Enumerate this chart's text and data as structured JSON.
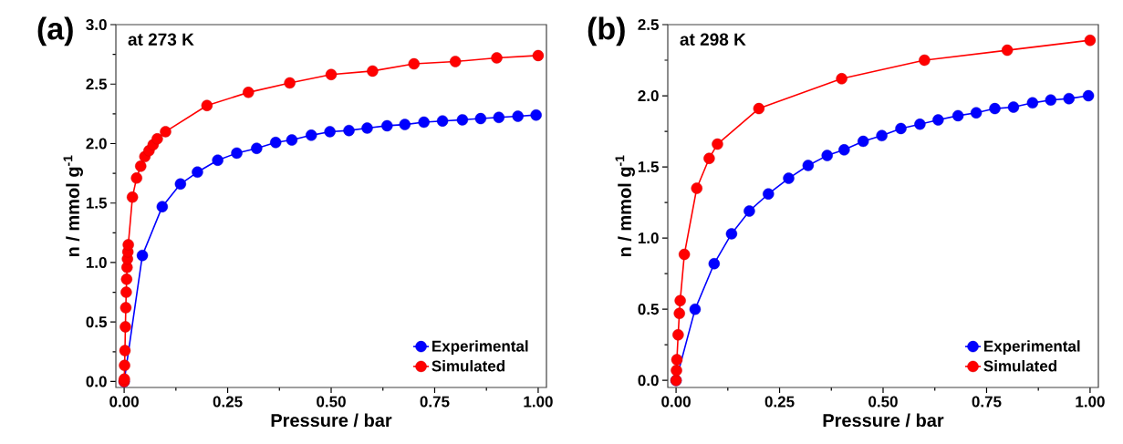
{
  "chart_data": [
    {
      "type": "line",
      "annotations": [
        "(a)",
        "at 273 K"
      ],
      "xlabel": "Pressure / bar",
      "ylabel": "n / mmol g$^{-1}$",
      "xlim": [
        -0.02,
        1.02
      ],
      "ylim": [
        -0.05,
        3.0
      ],
      "xticks": [
        {
          "value": 0,
          "label": "0.00"
        },
        {
          "value": 0.25,
          "label": "0.25"
        },
        {
          "value": 0.5,
          "label": "0.50"
        },
        {
          "value": 0.75,
          "label": "0.75"
        },
        {
          "value": 1,
          "label": "1.00"
        }
      ],
      "yticks": [
        {
          "value": 0,
          "label": "0.0"
        },
        {
          "value": 0.5,
          "label": "0.5"
        },
        {
          "value": 1,
          "label": "1.0"
        },
        {
          "value": 1.5,
          "label": "1.5"
        },
        {
          "value": 2,
          "label": "2.0"
        },
        {
          "value": 2.5,
          "label": "2.5"
        },
        {
          "value": 3,
          "label": "3.0"
        }
      ],
      "marker": "circle",
      "line_style": "solid",
      "grid": false,
      "legend": "bottom right",
      "series": [
        {
          "name": "Experimental",
          "color": "#0000ff",
          "x": [
            0.0,
            0.005,
            0.044,
            0.092,
            0.136,
            0.177,
            0.226,
            0.272,
            0.32,
            0.366,
            0.405,
            0.452,
            0.497,
            0.543,
            0.587,
            0.635,
            0.678,
            0.724,
            0.769,
            0.817,
            0.861,
            0.905,
            0.951,
            0.995
          ],
          "values": [
            0.0,
            null,
            1.06,
            1.47,
            1.66,
            1.76,
            1.86,
            1.92,
            1.96,
            2.01,
            2.03,
            2.07,
            2.1,
            2.11,
            2.13,
            2.15,
            2.16,
            2.18,
            2.19,
            2.2,
            2.21,
            2.22,
            2.23,
            2.24
          ]
        },
        {
          "name": "Simulated",
          "color": "#ff0000",
          "x": [
            0.0,
            0.0005,
            0.001,
            0.002,
            0.003,
            0.004,
            0.005,
            0.006,
            0.007,
            0.008,
            0.009,
            0.01,
            0.02,
            0.03,
            0.04,
            0.05,
            0.06,
            0.07,
            0.08,
            0.1,
            0.2,
            0.3,
            0.4,
            0.5,
            0.6,
            0.7,
            0.8,
            0.9,
            1.0
          ],
          "values": [
            0.0,
            0.02,
            0.135,
            0.26,
            0.46,
            0.62,
            0.75,
            0.86,
            0.96,
            1.03,
            1.09,
            1.15,
            1.55,
            1.71,
            1.81,
            1.89,
            1.94,
            1.99,
            2.04,
            2.1,
            2.32,
            2.43,
            2.51,
            2.58,
            2.61,
            2.67,
            2.69,
            2.72,
            2.74
          ]
        }
      ]
    },
    {
      "type": "line",
      "annotations": [
        "(b)",
        "at 298 K"
      ],
      "xlabel": "Pressure / bar",
      "ylabel": "n / mmol g$^{-1}$",
      "xlim": [
        -0.02,
        1.02
      ],
      "ylim": [
        -0.05,
        2.5
      ],
      "xticks": [
        {
          "value": 0,
          "label": "0.00"
        },
        {
          "value": 0.25,
          "label": "0.25"
        },
        {
          "value": 0.5,
          "label": "0.50"
        },
        {
          "value": 0.75,
          "label": "0.75"
        },
        {
          "value": 1,
          "label": "1.00"
        }
      ],
      "yticks": [
        {
          "value": 0,
          "label": "0.0"
        },
        {
          "value": 0.5,
          "label": "0.5"
        },
        {
          "value": 1,
          "label": "1.0"
        },
        {
          "value": 1.5,
          "label": "1.5"
        },
        {
          "value": 2,
          "label": "2.0"
        },
        {
          "value": 2.5,
          "label": "2.5"
        }
      ],
      "marker": "circle",
      "line_style": "solid",
      "grid": false,
      "legend": "bottom right",
      "series": [
        {
          "name": "Experimental",
          "color": "#0000ff",
          "x": [
            0.0,
            0.046,
            0.092,
            0.134,
            0.177,
            0.223,
            0.272,
            0.319,
            0.365,
            0.406,
            0.452,
            0.497,
            0.543,
            0.589,
            0.633,
            0.681,
            0.725,
            0.77,
            0.815,
            0.861,
            0.905,
            0.949,
            0.996
          ],
          "values": [
            0.0,
            0.5,
            0.82,
            1.03,
            1.19,
            1.31,
            1.42,
            1.51,
            1.58,
            1.62,
            1.68,
            1.72,
            1.77,
            1.8,
            1.83,
            1.86,
            1.88,
            1.91,
            1.92,
            1.95,
            1.97,
            1.98,
            2.0
          ]
        },
        {
          "name": "Simulated",
          "color": "#ff0000",
          "x": [
            0.0,
            0.001,
            0.002,
            0.005,
            0.008,
            0.01,
            0.02,
            0.05,
            0.08,
            0.1,
            0.2,
            0.4,
            0.6,
            0.8,
            1.0
          ],
          "values": [
            0.0,
            0.07,
            0.145,
            0.32,
            0.47,
            0.56,
            0.885,
            1.35,
            1.56,
            1.66,
            1.91,
            2.12,
            2.25,
            2.32,
            2.39
          ]
        }
      ]
    }
  ]
}
